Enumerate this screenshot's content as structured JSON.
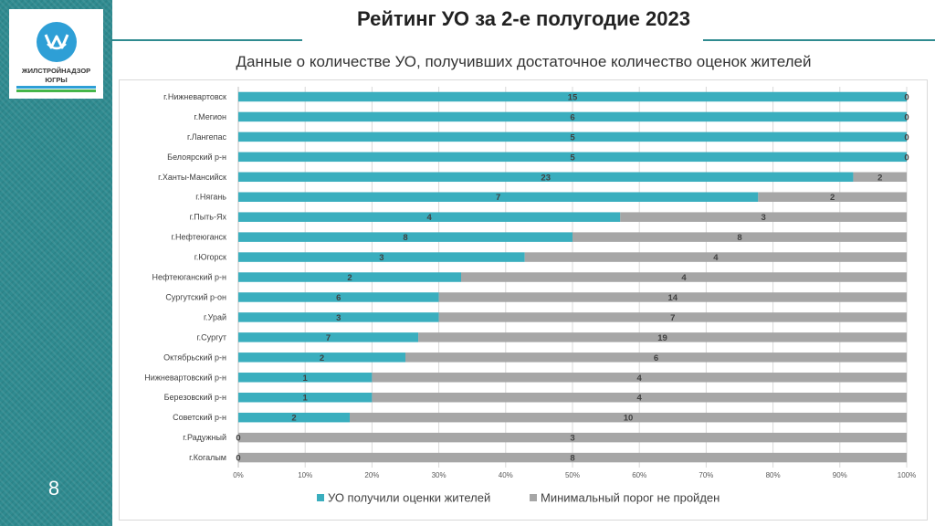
{
  "slide": {
    "title": "Рейтинг УО за 2-е полугодие 2023",
    "subtitle": "Данные о количестве УО, получивших достаточное количество оценок жителей",
    "page_number": "8",
    "logo": {
      "line1": "ЖИЛСТРОЙНАДЗОР",
      "line2": "ЮГРЫ"
    }
  },
  "colors": {
    "teal": "#3aaebe",
    "gray": "#a6a6a6",
    "accent": "#2f8b90"
  },
  "chart_data": {
    "type": "bar",
    "orientation": "horizontal",
    "stacked_percent": true,
    "categories": [
      "г.Нижневартовск",
      "г.Мегион",
      "г.Лангепас",
      "Белоярский р-н",
      "г.Ханты-Мансийск",
      "г.Нягань",
      "г.Пыть-Ях",
      "г.Нефтеюганск",
      "г.Югорск",
      "Нефтеюганский р-н",
      "Сургутский р-он",
      "г.Урай",
      "г.Сургут",
      "Октябрьский р-н",
      "Нижневартовский р-н",
      "Березовский р-н",
      "Советский р-н",
      "г.Радужный",
      "г.Когалым"
    ],
    "series": [
      {
        "name": "УО получили оценки жителей",
        "color": "#3aaebe",
        "values": [
          15,
          6,
          5,
          5,
          23,
          7,
          4,
          8,
          3,
          2,
          6,
          3,
          7,
          2,
          1,
          1,
          2,
          0,
          0
        ]
      },
      {
        "name": "Минимальный порог не пройден",
        "color": "#a6a6a6",
        "values": [
          0,
          0,
          0,
          0,
          2,
          2,
          3,
          8,
          4,
          4,
          14,
          7,
          19,
          6,
          4,
          4,
          10,
          3,
          8
        ]
      }
    ],
    "x_ticks": [
      "0%",
      "10%",
      "20%",
      "30%",
      "40%",
      "50%",
      "60%",
      "70%",
      "80%",
      "90%",
      "100%"
    ],
    "xlim": [
      0,
      100
    ],
    "legend": "bottom"
  }
}
